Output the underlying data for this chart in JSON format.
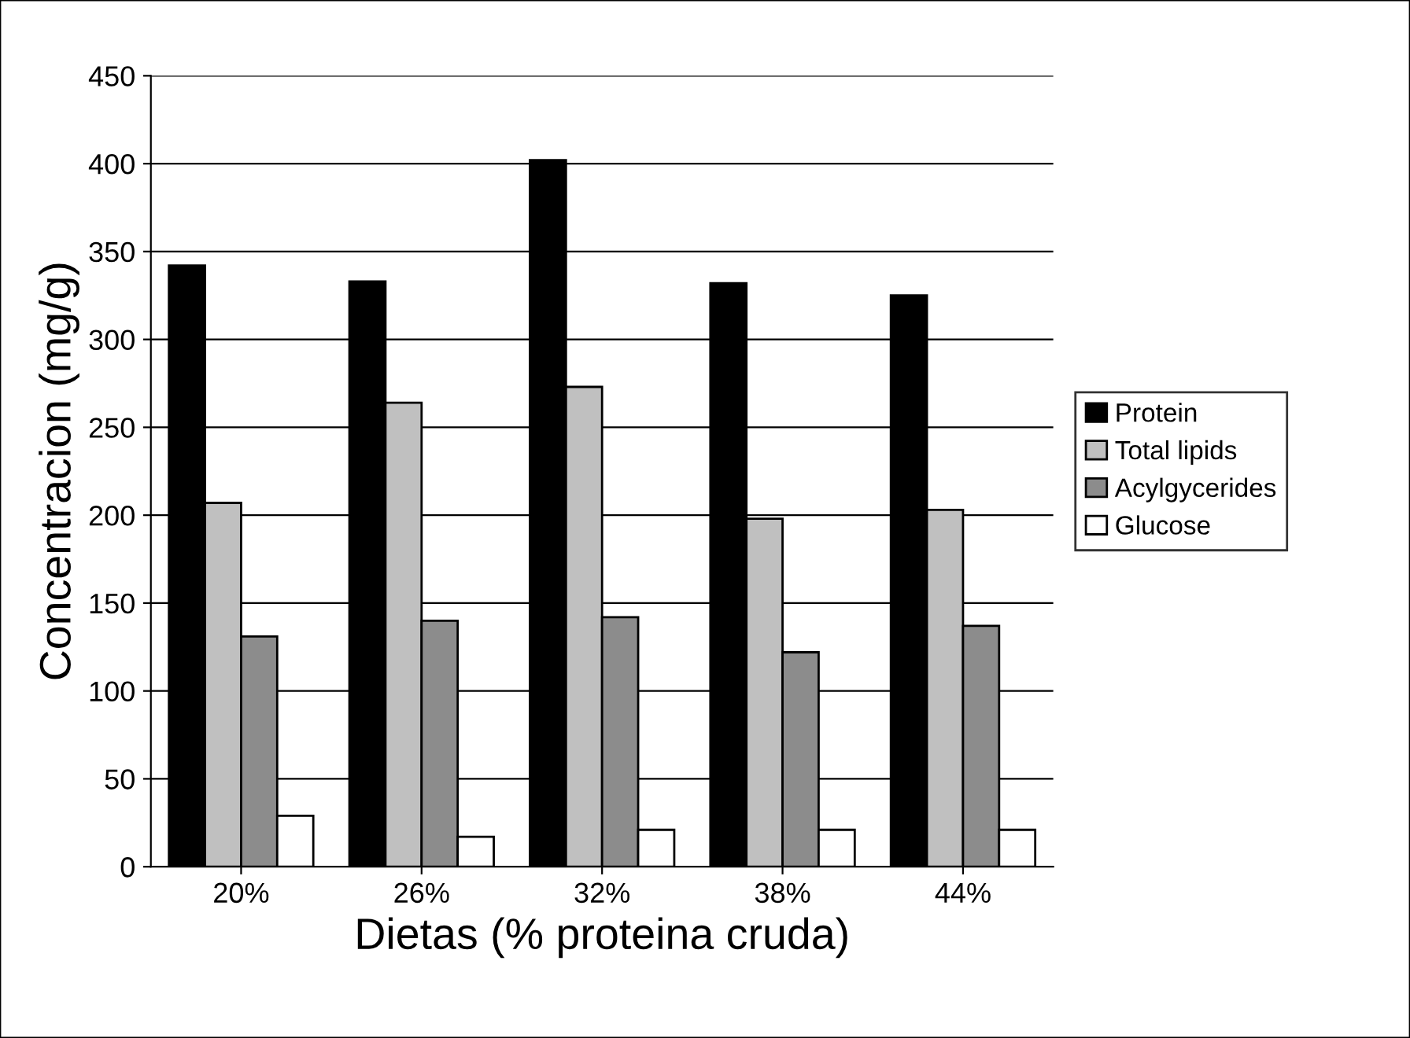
{
  "chart_data": {
    "type": "bar",
    "xlabel": "Dietas (% proteina cruda)",
    "ylabel": "Concentracion (mg/g)",
    "categories": [
      "20%",
      "26%",
      "32%",
      "38%",
      "44%"
    ],
    "series": [
      {
        "name": "Protein",
        "color": "#000000",
        "values": [
          342,
          333,
          402,
          332,
          325
        ]
      },
      {
        "name": "Total lipids",
        "color": "#c0c0c0",
        "values": [
          207,
          264,
          273,
          198,
          203
        ]
      },
      {
        "name": "Acylgycerides",
        "color": "#8c8c8c",
        "values": [
          131,
          140,
          142,
          122,
          137
        ]
      },
      {
        "name": "Glucose",
        "color": "#ffffff",
        "values": [
          29,
          17,
          21,
          21,
          21
        ]
      }
    ],
    "ylim": [
      0,
      450
    ],
    "yticks": [
      0,
      50,
      100,
      150,
      200,
      250,
      300,
      350,
      400,
      450
    ],
    "grid": "y",
    "legend": "right"
  }
}
